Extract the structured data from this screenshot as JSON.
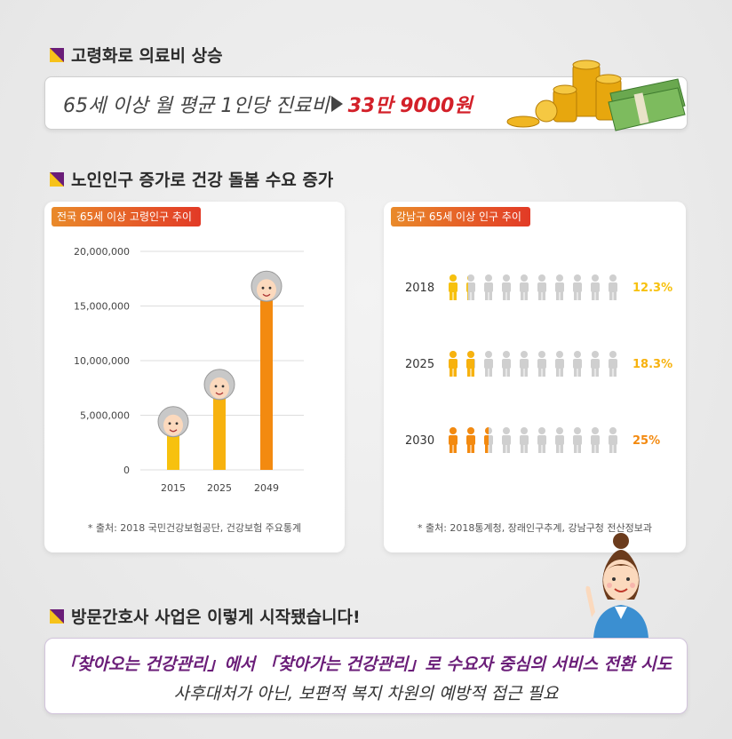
{
  "section1": {
    "title": "고령화로 의료비 상승",
    "label": "65세 이상 월 평균 1인당 진료비",
    "value": "33만 9000원"
  },
  "section2": {
    "title": "노인인구 증가로 건강 돌봄 수요 증가"
  },
  "chart_data": [
    {
      "type": "bar",
      "title": "전국 65세 이상 고령인구 추이",
      "categories": [
        "2015",
        "2025",
        "2049"
      ],
      "values": [
        3600000,
        7000000,
        16000000
      ],
      "ylim": [
        0,
        20000000
      ],
      "yticks": [
        "20,000,000",
        "15,000,000",
        "10,000,000",
        "5,000,000",
        "0"
      ],
      "colors": [
        "#f7c10e",
        "#f7b20e",
        "#f38a10"
      ],
      "source": "* 출처: 2018 국민건강보험공단, 건강보험 주요통계"
    },
    {
      "type": "table",
      "title": "강남구 65세 이상 인구 추이",
      "rows": [
        {
          "year": "2018",
          "percent": "12.3%",
          "share": 0.123,
          "color": "#f7c10e"
        },
        {
          "year": "2025",
          "percent": "18.3%",
          "share": 0.183,
          "color": "#f7b20e"
        },
        {
          "year": "2030",
          "percent": "25%",
          "share": 0.25,
          "color": "#f38a10"
        }
      ],
      "icons_per_row": 10,
      "source": "* 출처: 2018통계청, 장래인구추계, 강남구청 전산정보과"
    }
  ],
  "section3": {
    "title": "방문간호사 사업은 이렇게 시작됐습니다!",
    "line1": "「찾아오는 건강관리」에서 「찾아가는 건강관리」로 수요자 중심의 서비스 전환 시도",
    "line2": "사후대처가 아닌, 보편적 복지 차원의 예방적 접근 필요"
  }
}
